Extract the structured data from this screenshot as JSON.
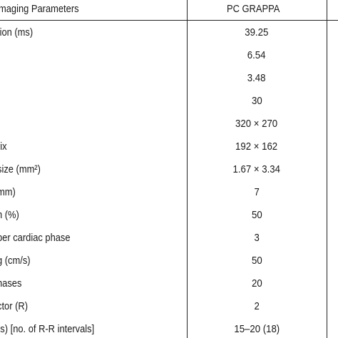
{
  "table": {
    "headers": {
      "parameter": "maging Parameters",
      "pc_grappa": "PC GRAPPA"
    },
    "rows": [
      {
        "parameter": "tion (ms)",
        "value": "39.25"
      },
      {
        "parameter": "",
        "value": "6.54"
      },
      {
        "parameter": "",
        "value": "3.48"
      },
      {
        "parameter": "",
        "value": "30"
      },
      {
        "parameter": "",
        "value": "320 × 270"
      },
      {
        "parameter": "rix",
        "value": "192 × 162"
      },
      {
        "parameter": "size (mm²)",
        "value": "1.67 × 3.34"
      },
      {
        "parameter": "mm)",
        "value": "7"
      },
      {
        "parameter": "n (%)",
        "value": "50"
      },
      {
        "parameter": "per cardiac phase",
        "value": "3"
      },
      {
        "parameter": "g (cm/s)",
        "value": "50"
      },
      {
        "parameter": "hases",
        "value": "20"
      },
      {
        "parameter": "ctor (R)",
        "value": "2"
      },
      {
        "parameter": " (s) [no. of R-R intervals]",
        "value": "15–20 (18)"
      }
    ]
  }
}
